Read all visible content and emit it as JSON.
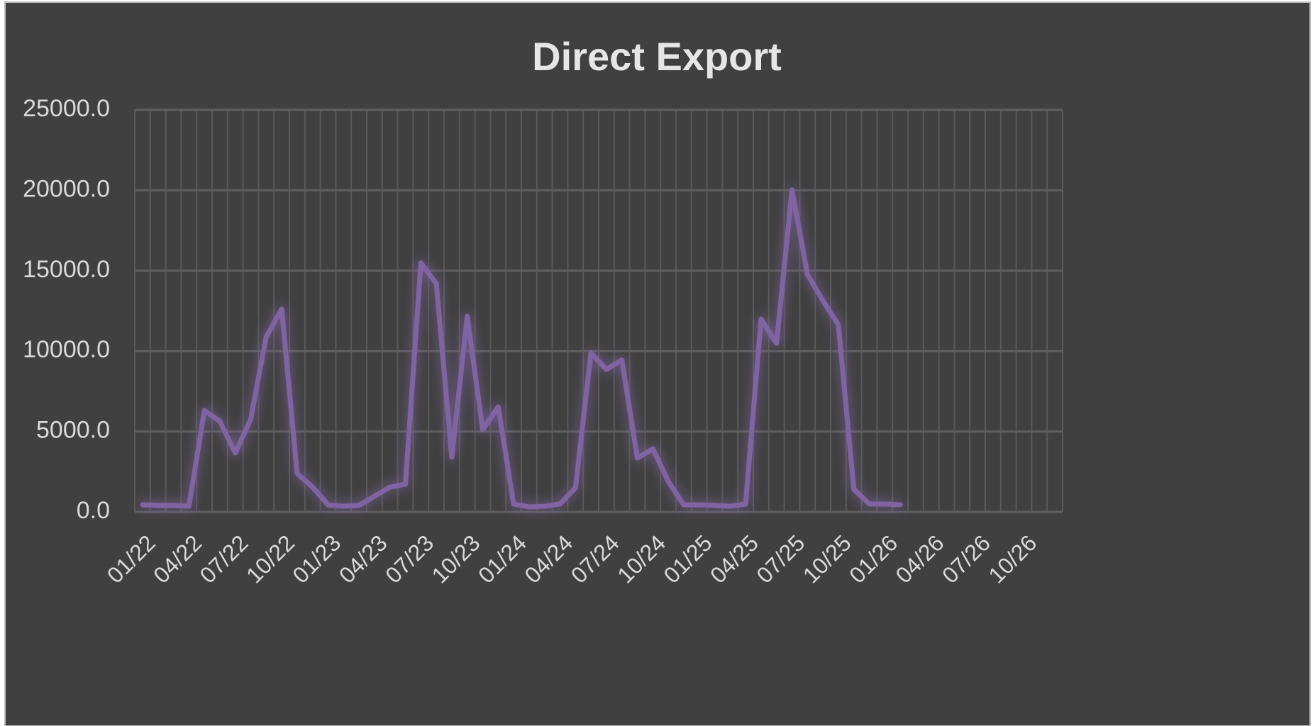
{
  "chart_data": {
    "type": "line",
    "title": "Direct Export",
    "categories": [
      "01/22",
      null,
      null,
      "04/22",
      null,
      null,
      "07/22",
      null,
      null,
      "10/22",
      null,
      null,
      "01/23",
      null,
      null,
      "04/23",
      null,
      null,
      "07/23",
      null,
      null,
      "10/23",
      null,
      null,
      "01/24",
      null,
      null,
      "04/24",
      null,
      null,
      "07/24",
      null,
      null,
      "10/24",
      null,
      null,
      "01/25",
      null,
      null,
      "04/25",
      null,
      null,
      "07/25",
      null,
      null,
      "10/25",
      null,
      null,
      "01/26",
      null,
      null,
      "04/26",
      null,
      null,
      "07/26",
      null,
      null,
      "10/26",
      null,
      null
    ],
    "series": [
      {
        "name": "Direct Export",
        "color": "#8064a2",
        "values": [
          440,
          400,
          400,
          350,
          6300,
          5650,
          3660,
          5780,
          10890,
          12610,
          2380,
          1540,
          440,
          350,
          400,
          970,
          1540,
          1720,
          15480,
          14200,
          3400,
          12170,
          5110,
          6530,
          490,
          310,
          350,
          490,
          1500,
          9880,
          8860,
          9440,
          3350,
          3920,
          1900,
          440,
          440,
          400,
          350,
          490,
          11990,
          10490,
          20020,
          14770,
          13140,
          11640,
          1410,
          490,
          490,
          440,
          null,
          null,
          null,
          null,
          null,
          null,
          null,
          null,
          null,
          null
        ]
      }
    ],
    "ylim": [
      0,
      25000
    ],
    "yticks": [
      {
        "value": 0,
        "label": "0.0"
      },
      {
        "value": 5000,
        "label": "5000.0"
      },
      {
        "value": 10000,
        "label": "10000.0"
      },
      {
        "value": 15000,
        "label": "15000.0"
      },
      {
        "value": 20000,
        "label": "20000.0"
      },
      {
        "value": 25000,
        "label": "25000.0"
      }
    ],
    "grid": true
  }
}
